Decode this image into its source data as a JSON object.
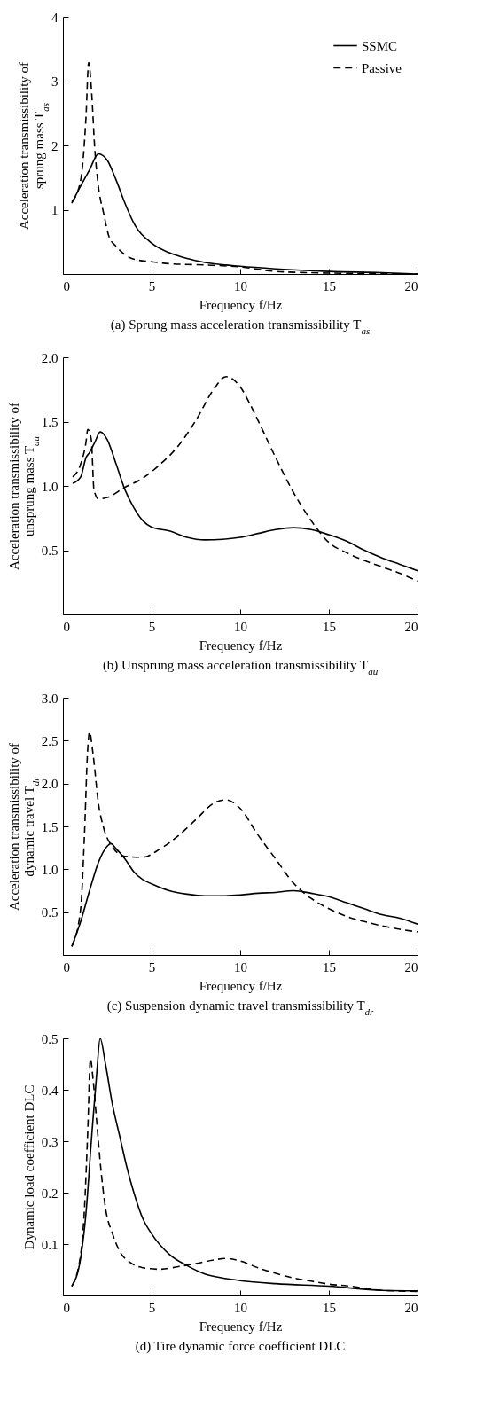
{
  "chart_data": [
    {
      "type": "line",
      "title": "(a) Sprung mass acceleration transmissibility T$_{as}$",
      "xlabel": "Frequency f/Hz",
      "ylabel": "Acceleration transmissibility of\nsprung mass T$_{as}$",
      "xlim": [
        0,
        20
      ],
      "xticks": [
        0,
        5,
        10,
        15,
        20
      ],
      "ylim": [
        0,
        4
      ],
      "yticks": [
        1,
        2,
        3,
        4
      ],
      "grid": false,
      "legend": "top right",
      "series": [
        {
          "name": "SSMC",
          "color": "#000000",
          "line_style": "solid",
          "x": [
            0.5,
            1,
            1.5,
            2,
            2.5,
            3,
            3.5,
            4,
            5,
            6,
            7,
            8,
            10,
            12,
            15,
            18,
            20
          ],
          "values": [
            1.1,
            1.37,
            1.62,
            1.87,
            1.77,
            1.46,
            1.1,
            0.79,
            0.48,
            0.33,
            0.24,
            0.18,
            0.12,
            0.08,
            0.04,
            0.02,
            0
          ]
        },
        {
          "name": "Passive",
          "color": "#000000",
          "line_style": "dashed",
          "x": [
            0.5,
            1,
            1.3,
            1.45,
            1.6,
            1.8,
            2,
            2.3,
            2.6,
            3,
            3.5,
            4,
            5,
            6,
            8,
            10,
            12,
            14,
            16,
            20
          ],
          "values": [
            1.12,
            1.46,
            2.44,
            3.29,
            2.9,
            1.93,
            1.36,
            0.94,
            0.58,
            0.43,
            0.3,
            0.23,
            0.19,
            0.16,
            0.14,
            0.11,
            0.04,
            0.02,
            0.01,
            0
          ]
        }
      ]
    },
    {
      "type": "line",
      "title": "(b) Unsprung mass acceleration transmissibility T$_{au}$",
      "xlabel": "Frequency f/Hz",
      "ylabel": "Acceleration transmissibility of\nunsprung mass T$_{au}$",
      "xlim": [
        0,
        20
      ],
      "xticks": [
        0,
        5,
        10,
        15,
        20
      ],
      "ylim": [
        0,
        2
      ],
      "yticks": [
        {
          "value": 0.5,
          "label": "0.5"
        },
        {
          "value": 1,
          "label": "1.0"
        },
        {
          "value": 1.5,
          "label": "1.5"
        },
        {
          "value": 2,
          "label": "2.0"
        }
      ],
      "grid": false,
      "legend": "top right",
      "series": [
        {
          "name": "SSMC",
          "color": "#000000",
          "line_style": "solid",
          "x": [
            0.55,
            1,
            1.3,
            1.5,
            1.8,
            2.1,
            2.5,
            3,
            3.5,
            4,
            4.5,
            5,
            6,
            7,
            8,
            9,
            10,
            11,
            12,
            13,
            14,
            15,
            16,
            17,
            18,
            19,
            20
          ],
          "values": [
            1.02,
            1.07,
            1.22,
            1.26,
            1.34,
            1.42,
            1.36,
            1.17,
            0.97,
            0.83,
            0.73,
            0.68,
            0.65,
            0.6,
            0.58,
            0.585,
            0.6,
            0.63,
            0.66,
            0.675,
            0.66,
            0.62,
            0.57,
            0.5,
            0.44,
            0.39,
            0.34
          ]
        },
        {
          "name": "Passive",
          "color": "#000000",
          "line_style": "dashed",
          "x": [
            0.55,
            1,
            1.3,
            1.4,
            1.6,
            1.75,
            2,
            2.5,
            3.5,
            4.5,
            5.5,
            6.5,
            7.5,
            8.5,
            9.2,
            10,
            10.5,
            11,
            12,
            13,
            14,
            15,
            16,
            17,
            18,
            19,
            20
          ],
          "values": [
            1.07,
            1.17,
            1.34,
            1.44,
            1.36,
            0.97,
            0.9,
            0.91,
            0.99,
            1.06,
            1.17,
            1.31,
            1.51,
            1.75,
            1.85,
            1.77,
            1.65,
            1.51,
            1.22,
            0.95,
            0.73,
            0.56,
            0.48,
            0.42,
            0.37,
            0.32,
            0.26
          ]
        }
      ]
    },
    {
      "type": "line",
      "title": "(c) Suspension dynamic travel transmissibility T$_{dr}$",
      "xlabel": "Frequency f/Hz",
      "ylabel": "Acceleration transmissibility of\ndynamic travel T$_{dr}$",
      "xlim": [
        0,
        20
      ],
      "xticks": [
        0,
        5,
        10,
        15,
        20
      ],
      "ylim": [
        0,
        3
      ],
      "yticks": [
        {
          "value": 0.5,
          "label": "0.5"
        },
        {
          "value": 1,
          "label": "1.0"
        },
        {
          "value": 1.5,
          "label": "1.5"
        },
        {
          "value": 2,
          "label": "2.0"
        },
        {
          "value": 2.5,
          "label": "2.5"
        },
        {
          "value": 3,
          "label": "3.0"
        }
      ],
      "grid": false,
      "legend": "top right",
      "series": [
        {
          "name": "SSMC",
          "color": "#000000",
          "line_style": "solid",
          "x": [
            0.5,
            1,
            1.5,
            2,
            2.5,
            2.7,
            3,
            3.5,
            4,
            4.5,
            5,
            6,
            7,
            8,
            9,
            10,
            11,
            12,
            13,
            14,
            15,
            16,
            17,
            18,
            19,
            20
          ],
          "values": [
            0.1,
            0.39,
            0.75,
            1.08,
            1.27,
            1.3,
            1.24,
            1.12,
            0.97,
            0.88,
            0.83,
            0.75,
            0.71,
            0.69,
            0.69,
            0.7,
            0.72,
            0.73,
            0.75,
            0.72,
            0.68,
            0.61,
            0.54,
            0.47,
            0.43,
            0.36
          ]
        },
        {
          "name": "Passive",
          "color": "#000000",
          "line_style": "dashed",
          "x": [
            0.5,
            1,
            1.2,
            1.4,
            1.5,
            1.7,
            2,
            2.3,
            2.8,
            3.5,
            4.5,
            5.5,
            6.5,
            7.5,
            8.5,
            9.2,
            10,
            11,
            12,
            13,
            14,
            15,
            16,
            17,
            18,
            19,
            20
          ],
          "values": [
            0.1,
            0.54,
            1.33,
            2.41,
            2.6,
            2.34,
            1.77,
            1.48,
            1.26,
            1.15,
            1.14,
            1.24,
            1.39,
            1.58,
            1.77,
            1.81,
            1.71,
            1.4,
            1.12,
            0.84,
            0.66,
            0.54,
            0.45,
            0.39,
            0.34,
            0.3,
            0.27
          ]
        }
      ]
    },
    {
      "type": "line",
      "title": "(d) Tire dynamic force coefficient DLC",
      "xlabel": "Frequency f/Hz",
      "ylabel": "Dynamic load coefficient DLC",
      "xlim": [
        0,
        20
      ],
      "xticks": [
        0,
        5,
        10,
        15,
        20
      ],
      "ylim": [
        0,
        0.5
      ],
      "yticks": [
        0.1,
        0.2,
        0.3,
        0.4,
        0.5
      ],
      "grid": false,
      "legend": "top right",
      "series": [
        {
          "name": "SSMC",
          "color": "#000000",
          "line_style": "solid",
          "x": [
            0.5,
            1,
            1.3,
            1.6,
            1.9,
            2.1,
            2.4,
            2.8,
            3.2,
            3.6,
            4,
            4.5,
            5,
            6,
            7,
            8,
            9,
            10,
            12,
            15,
            18,
            20
          ],
          "values": [
            0.018,
            0.073,
            0.16,
            0.3,
            0.43,
            0.5,
            0.45,
            0.37,
            0.31,
            0.25,
            0.2,
            0.15,
            0.12,
            0.08,
            0.058,
            0.042,
            0.034,
            0.029,
            0.023,
            0.018,
            0.01,
            0.009
          ]
        },
        {
          "name": "Passive",
          "color": "#000000",
          "line_style": "dashed",
          "x": [
            0.5,
            1,
            1.2,
            1.4,
            1.55,
            1.7,
            1.9,
            2.1,
            2.4,
            2.8,
            3.2,
            3.8,
            4.5,
            5.5,
            6.5,
            7.5,
            8.5,
            9.2,
            10,
            11,
            12,
            13,
            14,
            15,
            16,
            18,
            20
          ],
          "values": [
            0.018,
            0.08,
            0.16,
            0.32,
            0.46,
            0.42,
            0.34,
            0.26,
            0.17,
            0.12,
            0.086,
            0.064,
            0.054,
            0.051,
            0.056,
            0.062,
            0.069,
            0.072,
            0.067,
            0.054,
            0.043,
            0.034,
            0.028,
            0.022,
            0.019,
            0.01,
            0.008
          ]
        }
      ]
    }
  ]
}
